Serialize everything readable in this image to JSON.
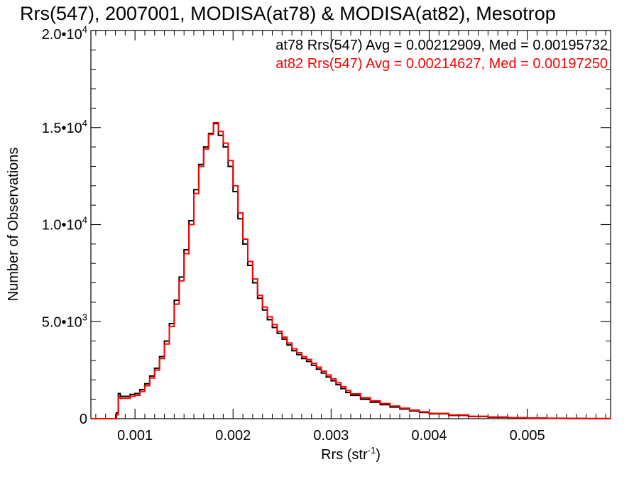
{
  "chart_data": {
    "type": "line",
    "title": "Rrs(547), 2007001, MODISA(at78) & MODISA(at82), Mesotrop",
    "xlabel": "Rrs (str",
    "xlabel_sup": "-1",
    "xlabel_tail": ")",
    "ylabel": "Number of Observations",
    "xlim": [
      0.00055,
      0.00585
    ],
    "ylim": [
      0,
      20000
    ],
    "x_ticks": [
      {
        "value": 0.001,
        "label": "0.001"
      },
      {
        "value": 0.002,
        "label": "0.002"
      },
      {
        "value": 0.003,
        "label": "0.003"
      },
      {
        "value": 0.004,
        "label": "0.004"
      },
      {
        "value": 0.005,
        "label": "0.005"
      }
    ],
    "y_ticks": [
      {
        "value": 0,
        "label": "0",
        "sup": ""
      },
      {
        "value": 5000,
        "label": "5.0•10",
        "sup": "3"
      },
      {
        "value": 10000,
        "label": "1.0•10",
        "sup": "4"
      },
      {
        "value": 15000,
        "label": "1.5•10",
        "sup": "4"
      },
      {
        "value": 20000,
        "label": "2.0•10",
        "sup": "4"
      }
    ],
    "grid": false,
    "series": [
      {
        "name": "at78",
        "label": "at78 Rrs(547) Avg = 0.00212909, Med = 0.00195732",
        "color": "#000000",
        "x": [
          0.00055,
          0.00079,
          0.00081,
          0.00083,
          0.00085,
          0.0009,
          0.00095,
          0.001,
          0.00105,
          0.0011,
          0.00115,
          0.0012,
          0.00125,
          0.0013,
          0.00135,
          0.0014,
          0.00145,
          0.0015,
          0.00155,
          0.0016,
          0.00165,
          0.0017,
          0.00175,
          0.0018,
          0.00185,
          0.0019,
          0.00195,
          0.002,
          0.00205,
          0.0021,
          0.00215,
          0.0022,
          0.00225,
          0.0023,
          0.00235,
          0.0024,
          0.00245,
          0.0025,
          0.00255,
          0.0026,
          0.00265,
          0.0027,
          0.00275,
          0.0028,
          0.00285,
          0.0029,
          0.00295,
          0.003,
          0.00305,
          0.0031,
          0.00315,
          0.0032,
          0.0033,
          0.0034,
          0.0035,
          0.0036,
          0.0037,
          0.0038,
          0.0039,
          0.004,
          0.0042,
          0.0044,
          0.0046,
          0.0048,
          0.005,
          0.0052,
          0.0054,
          0.0056,
          0.00585
        ],
        "y": [
          0,
          0,
          300,
          1300,
          1150,
          1150,
          1250,
          1300,
          1500,
          1800,
          2200,
          2600,
          3200,
          4000,
          4900,
          6100,
          7300,
          8700,
          10200,
          11800,
          13100,
          14000,
          14700,
          15200,
          14600,
          14000,
          13000,
          11700,
          10300,
          9000,
          7900,
          7000,
          6200,
          5600,
          5100,
          4700,
          4400,
          4100,
          3800,
          3500,
          3300,
          3100,
          2950,
          2750,
          2550,
          2350,
          2150,
          1950,
          1750,
          1550,
          1350,
          1200,
          1000,
          850,
          720,
          600,
          500,
          400,
          320,
          250,
          170,
          110,
          75,
          45,
          30,
          18,
          10,
          5,
          0
        ]
      },
      {
        "name": "at82",
        "label": "at82 Rrs(547) Avg = 0.00214627, Med = 0.00197250",
        "color": "#ff0000",
        "x": [
          0.00055,
          0.00079,
          0.00081,
          0.00083,
          0.00085,
          0.0009,
          0.00095,
          0.001,
          0.00105,
          0.0011,
          0.00115,
          0.0012,
          0.00125,
          0.0013,
          0.00135,
          0.0014,
          0.00145,
          0.0015,
          0.00155,
          0.0016,
          0.00165,
          0.0017,
          0.00175,
          0.0018,
          0.00185,
          0.0019,
          0.00195,
          0.002,
          0.00205,
          0.0021,
          0.00215,
          0.0022,
          0.00225,
          0.0023,
          0.00235,
          0.0024,
          0.00245,
          0.0025,
          0.00255,
          0.0026,
          0.00265,
          0.0027,
          0.00275,
          0.0028,
          0.00285,
          0.0029,
          0.00295,
          0.003,
          0.00305,
          0.0031,
          0.00315,
          0.0032,
          0.0033,
          0.0034,
          0.0035,
          0.0036,
          0.0037,
          0.0038,
          0.0039,
          0.004,
          0.0042,
          0.0044,
          0.0046,
          0.0048,
          0.005,
          0.0052,
          0.0054,
          0.0056,
          0.00585
        ],
        "y": [
          0,
          0,
          200,
          1100,
          1050,
          1050,
          1150,
          1200,
          1400,
          1700,
          2100,
          2500,
          3100,
          3850,
          4750,
          5900,
          7100,
          8500,
          10000,
          11600,
          13000,
          13900,
          14650,
          15250,
          14800,
          14200,
          13300,
          12000,
          10600,
          9250,
          8100,
          7200,
          6350,
          5750,
          5250,
          4850,
          4500,
          4200,
          3900,
          3600,
          3400,
          3200,
          3050,
          2850,
          2650,
          2450,
          2250,
          2050,
          1850,
          1650,
          1450,
          1280,
          1080,
          920,
          780,
          650,
          540,
          440,
          350,
          275,
          190,
          125,
          85,
          52,
          35,
          22,
          12,
          6,
          0
        ]
      }
    ]
  }
}
